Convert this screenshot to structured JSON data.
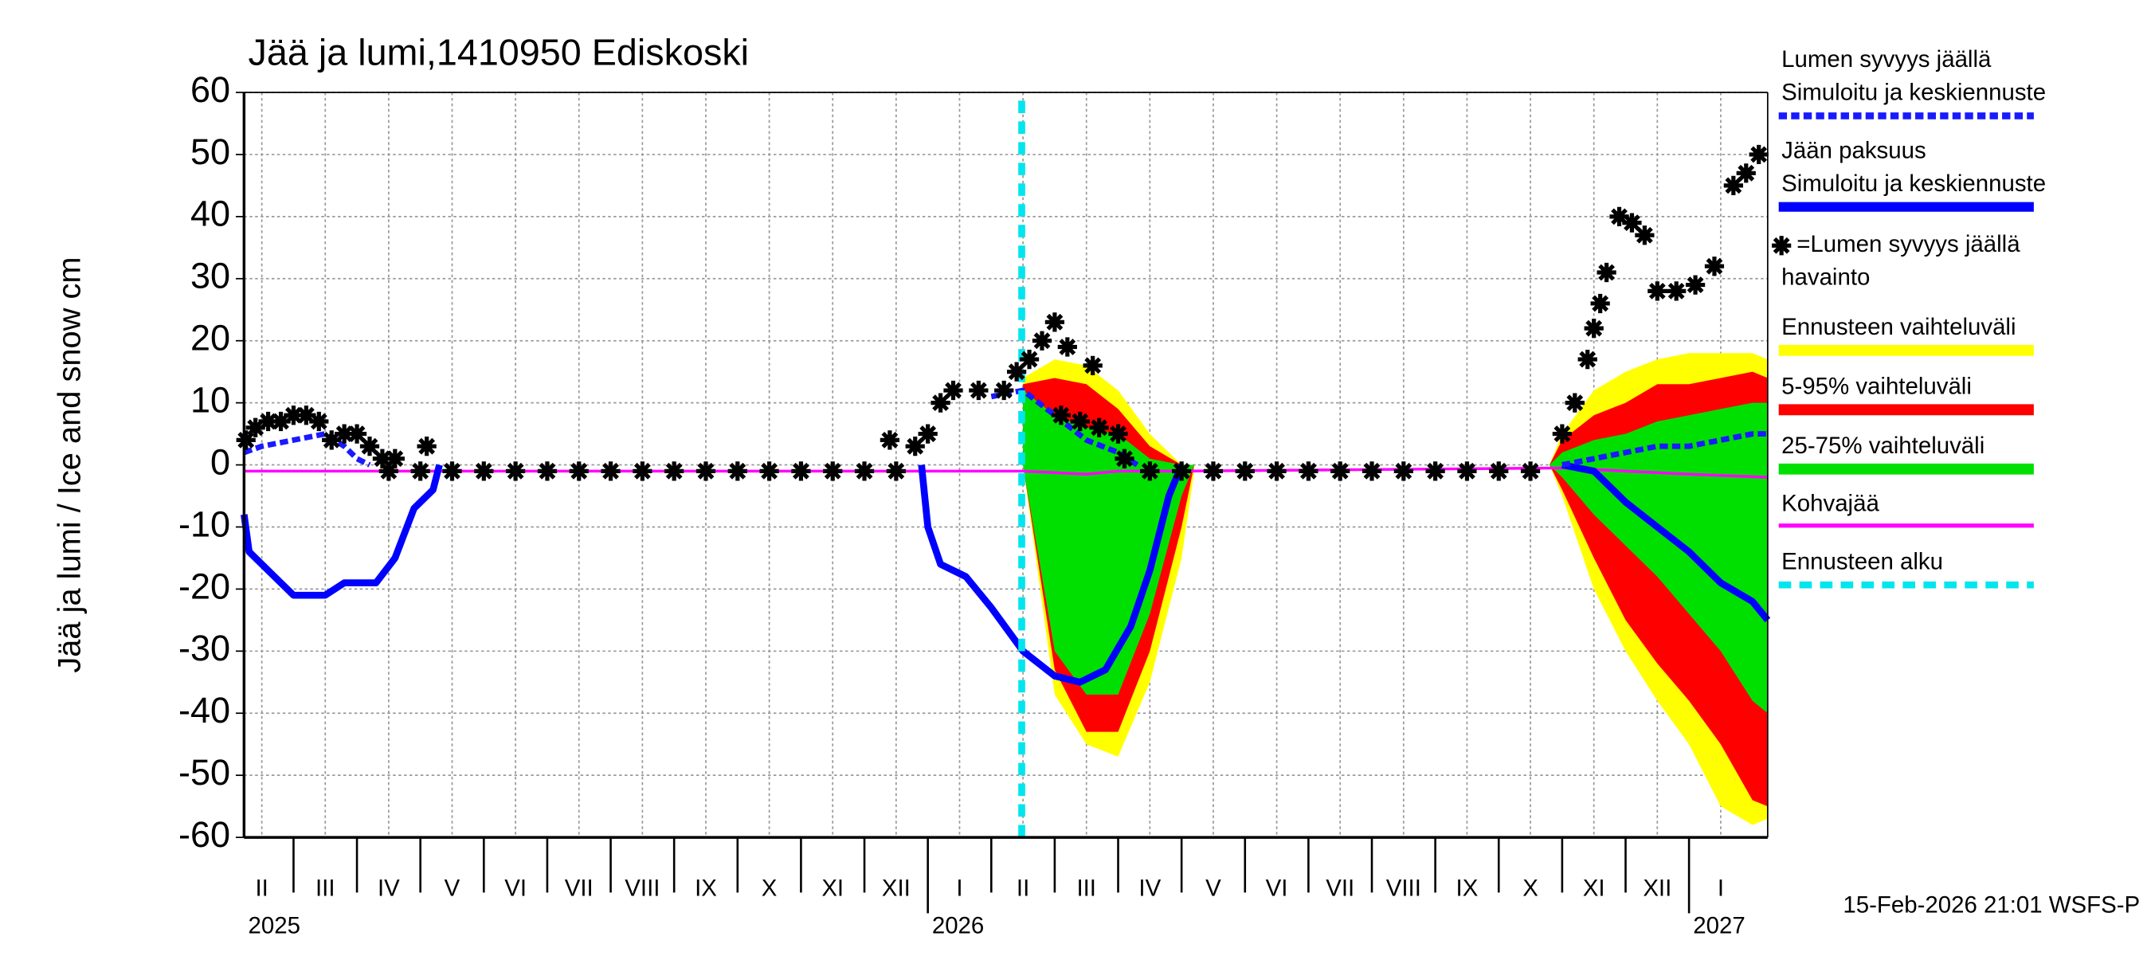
{
  "chart_data": {
    "type": "line",
    "title": "Jää ja lumi,1410950 Ediskoski",
    "y_label": "Jää ja lumi / Ice and snow    cm",
    "footer": "15-Feb-2026 21:01 WSFS-P",
    "ylim": [
      -60,
      60
    ],
    "yticks": [
      -60,
      -50,
      -40,
      -30,
      -20,
      -10,
      0,
      10,
      20,
      30,
      40,
      50,
      60
    ],
    "xlim": [
      1.22,
      25.24
    ],
    "xticks": [
      {
        "value": 1.5,
        "label": "II"
      },
      {
        "value": 2.5,
        "label": "III"
      },
      {
        "value": 3.5,
        "label": "IV"
      },
      {
        "value": 4.5,
        "label": "V"
      },
      {
        "value": 5.5,
        "label": "VI"
      },
      {
        "value": 6.5,
        "label": "VII"
      },
      {
        "value": 7.5,
        "label": "VIII"
      },
      {
        "value": 8.5,
        "label": "IX"
      },
      {
        "value": 9.5,
        "label": "X"
      },
      {
        "value": 10.5,
        "label": "XI"
      },
      {
        "value": 11.5,
        "label": "XII"
      },
      {
        "value": 12.5,
        "label": "I"
      },
      {
        "value": 13.5,
        "label": "II"
      },
      {
        "value": 14.5,
        "label": "III"
      },
      {
        "value": 15.5,
        "label": "IV"
      },
      {
        "value": 16.5,
        "label": "V"
      },
      {
        "value": 17.5,
        "label": "VI"
      },
      {
        "value": 18.5,
        "label": "VII"
      },
      {
        "value": 19.5,
        "label": "VIII"
      },
      {
        "value": 20.5,
        "label": "IX"
      },
      {
        "value": 21.5,
        "label": "X"
      },
      {
        "value": 22.5,
        "label": "XI"
      },
      {
        "value": 23.5,
        "label": "XII"
      },
      {
        "value": 24.5,
        "label": "I"
      }
    ],
    "year_labels": [
      {
        "value": 0,
        "label": "2025"
      },
      {
        "value": 12,
        "label": "2026"
      },
      {
        "value": 24,
        "label": "2027"
      }
    ],
    "grid": true,
    "bands": [
      {
        "name": "Ennusteen vaihteluväli",
        "color": "#ffff00",
        "x": [
          13.5,
          14,
          14.5,
          15,
          15.5,
          16,
          16.2,
          19,
          21.8,
          22,
          22.5,
          23,
          23.5,
          24,
          24.5,
          25,
          25.24
        ],
        "low": [
          0,
          -37,
          -45,
          -47,
          -35,
          -15,
          -1,
          null,
          0,
          -5,
          -20,
          -30,
          -38,
          -45,
          -55,
          -58,
          -57
        ],
        "high": [
          14,
          17,
          16,
          12,
          5,
          0,
          0,
          null,
          0,
          5,
          12,
          15,
          17,
          18,
          18,
          18,
          17
        ]
      },
      {
        "name": "5-95% vaihteluväli",
        "color": "#ff0000",
        "x": [
          13.5,
          14,
          14.5,
          15,
          15.5,
          16,
          16.2,
          19,
          21.8,
          22,
          22.5,
          23,
          23.5,
          24,
          24.5,
          25,
          25.24
        ],
        "low": [
          0,
          -33,
          -43,
          -43,
          -30,
          -10,
          0,
          null,
          0,
          -4,
          -15,
          -25,
          -32,
          -38,
          -45,
          -54,
          -55
        ],
        "high": [
          13,
          14,
          13,
          9,
          3,
          0,
          0,
          null,
          0,
          4,
          8,
          10,
          13,
          13,
          14,
          15,
          14
        ]
      },
      {
        "name": "25-75% vaihteluväli",
        "color": "#00e000",
        "x": [
          13.5,
          14,
          14.5,
          15,
          15.5,
          16,
          16.2,
          19,
          21.8,
          22,
          22.5,
          23,
          23.5,
          24,
          24.5,
          25,
          25.24
        ],
        "low": [
          0,
          -30,
          -37,
          -37,
          -24,
          -5,
          0,
          null,
          0,
          -2,
          -8,
          -13,
          -18,
          -24,
          -30,
          -38,
          -40
        ],
        "high": [
          12,
          8,
          6,
          5,
          1,
          0,
          0,
          null,
          0,
          2,
          4,
          5,
          7,
          8,
          9,
          10,
          10
        ]
      }
    ],
    "series": [
      {
        "name": [
          "Lumen syvyys jäällä",
          "Simuloitu ja keskiennuste"
        ],
        "color": "#1a1aff",
        "style": "dashed",
        "x": [
          1.22,
          1.5,
          2,
          2.5,
          2.8,
          3,
          3.2,
          8,
          13,
          13.5,
          14,
          14.5,
          15,
          15.3,
          20,
          22,
          22.5,
          23,
          23.5,
          24,
          24.5,
          25,
          25.24
        ],
        "values": [
          2,
          3,
          4,
          5,
          3,
          1,
          0,
          null,
          11,
          12,
          8,
          4,
          2,
          0,
          null,
          0,
          1,
          2,
          3,
          3,
          4,
          5,
          5
        ]
      },
      {
        "name": [
          "Jään paksuus",
          "Simuloitu ja keskiennuste"
        ],
        "color": "#0000ff",
        "style": "solid",
        "x": [
          1.22,
          1.3,
          1.7,
          2,
          2.5,
          2.8,
          3,
          3.3,
          3.6,
          3.9,
          4.2,
          4.3,
          8,
          11.9,
          12,
          12.2,
          12.6,
          13,
          13.5,
          14,
          14.4,
          14.8,
          15.2,
          15.5,
          15.8,
          16,
          19,
          22,
          22.5,
          23,
          23.5,
          24,
          24.5,
          25,
          25.24
        ],
        "values": [
          -8,
          -14,
          -18,
          -21,
          -21,
          -19,
          -19,
          -19,
          -15,
          -7,
          -4,
          0,
          null,
          0,
          -10,
          -16,
          -18,
          -23,
          -30,
          -34,
          -35,
          -33,
          -26,
          -17,
          -5,
          0,
          null,
          0,
          -1,
          -6,
          -10,
          -14,
          -19,
          -22,
          -25
        ]
      },
      {
        "name": [
          "Kohvajää"
        ],
        "color": "#ff00ff",
        "style": "thin",
        "x": [
          1.22,
          12,
          13.5,
          14.5,
          15,
          16,
          22,
          23,
          24,
          25.24
        ],
        "values": [
          -1,
          -1,
          -1,
          -1.5,
          -1,
          -1,
          -0.5,
          -1,
          -1.5,
          -2
        ]
      }
    ],
    "observations": {
      "name": [
        "=Lumen syvyys jäällä",
        "havainto"
      ],
      "color": "#000000",
      "x": [
        1.25,
        1.4,
        1.6,
        1.8,
        2,
        2.2,
        2.4,
        2.6,
        2.8,
        3,
        3.2,
        3.4,
        3.5,
        3.6,
        4,
        4.1,
        4.5,
        5,
        5.5,
        6,
        6.5,
        7,
        7.5,
        8,
        8.5,
        9,
        9.5,
        10,
        10.5,
        11,
        11.4,
        11.5,
        11.8,
        12,
        12.2,
        12.4,
        12.8,
        13.2,
        13.4,
        13.6,
        13.8,
        14,
        14.1,
        14.2,
        14.4,
        14.6,
        14.7,
        15,
        15.1,
        15.5,
        16,
        16.5,
        17,
        17.5,
        18,
        18.5,
        19,
        19.5,
        20,
        20.5,
        21,
        21.5,
        22,
        22.2,
        22.4,
        22.5,
        22.6,
        22.7,
        22.9,
        23.1,
        23.3,
        23.5,
        23.8,
        24.1,
        24.4,
        24.7,
        24.9,
        25.1
      ],
      "values": [
        4,
        6,
        7,
        7,
        8,
        8,
        7,
        4,
        5,
        5,
        3,
        1,
        -1,
        1,
        -1,
        3,
        -1,
        -1,
        -1,
        -1,
        -1,
        -1,
        -1,
        -1,
        -1,
        -1,
        -1,
        -1,
        -1,
        -1,
        4,
        -1,
        3,
        5,
        10,
        12,
        12,
        12,
        15,
        17,
        20,
        23,
        8,
        19,
        7,
        16,
        6,
        5,
        1,
        -1,
        -1,
        -1,
        -1,
        -1,
        -1,
        -1,
        -1,
        -1,
        -1,
        -1,
        -1,
        -1,
        5,
        10,
        17,
        22,
        26,
        31,
        40,
        39,
        37,
        28,
        28,
        29,
        32,
        45,
        47,
        50
      ]
    },
    "forecast_start": {
      "name": "Ennusteen alku",
      "x": 13.48,
      "color": "#00e5ee"
    }
  }
}
